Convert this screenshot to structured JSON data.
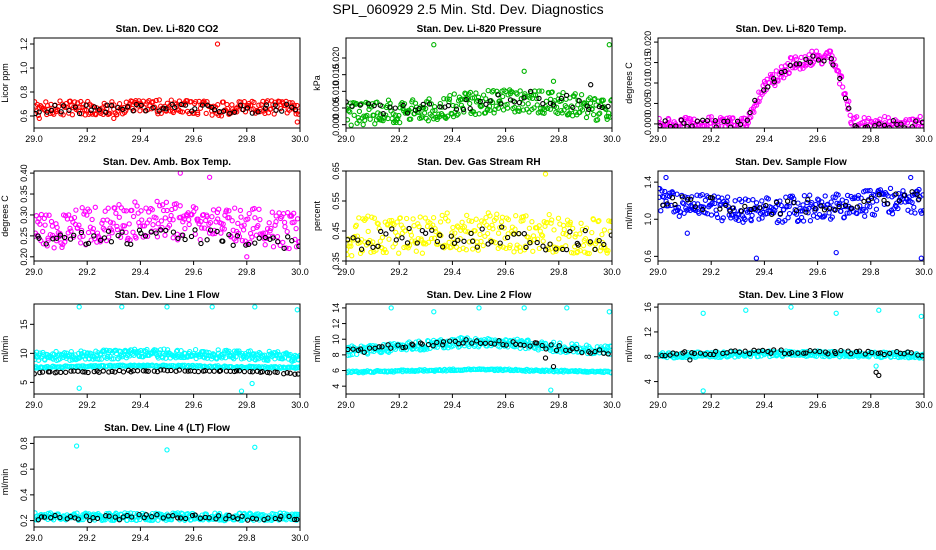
{
  "page": {
    "title": "SPL_060929  2.5 Min. Std. Dev. Diagnostics"
  },
  "chart_data": [
    {
      "type": "scatter",
      "title": "Stan. Dev. Li-820 CO2",
      "xlabel": "",
      "ylabel": "Licor ppm",
      "xlim": [
        29.0,
        30.0
      ],
      "xticks": [
        "29.0",
        "29.2",
        "29.4",
        "29.6",
        "29.8",
        "30.0"
      ],
      "ylim": [
        0.5,
        1.25
      ],
      "yticks": [
        0.6,
        0.8,
        1.0,
        1.2
      ],
      "ytick_labels": [
        "0.6",
        "0.8",
        "1.0",
        "1.2"
      ],
      "series": [
        {
          "color": "#ff0000",
          "band": {
            "center": [
              0.66,
              0.67,
              0.66,
              0.68,
              0.67,
              0.66,
              0.67,
              0.66
            ],
            "spread": 0.06
          },
          "n": 260,
          "outliers": [
            [
              29.02,
              0.58
            ],
            [
              29.69,
              1.2
            ],
            [
              29.99,
              0.55
            ],
            [
              29.3,
              0.58
            ]
          ]
        },
        {
          "color": "#000000",
          "band": {
            "center": [
              0.65,
              0.66,
              0.66,
              0.67,
              0.66,
              0.66,
              0.66,
              0.66
            ],
            "spread": 0.04
          },
          "n": 55,
          "outliers": []
        }
      ]
    },
    {
      "type": "scatter",
      "title": "Stan. Dev. Li-820 Pressure",
      "xlabel": "",
      "ylabel": "kPa",
      "xlim": [
        29.0,
        30.0
      ],
      "xticks": [
        "29.0",
        "29.2",
        "29.4",
        "29.6",
        "29.8",
        "30.0"
      ],
      "ylim": [
        -0.001,
        0.026
      ],
      "yticks": [
        0.0,
        0.005,
        0.01,
        0.015,
        0.02
      ],
      "ytick_labels": [
        "0.000",
        "0.005",
        "0.010",
        "0.015",
        "0.020"
      ],
      "series": [
        {
          "color": "#00b400",
          "band": {
            "center": [
              0.003,
              0.004,
              0.004,
              0.006,
              0.007,
              0.007,
              0.006,
              0.004
            ],
            "spread": 0.0035
          },
          "n": 320,
          "outliers": [
            [
              29.33,
              0.024
            ],
            [
              29.67,
              0.016
            ],
            [
              29.99,
              0.024
            ],
            [
              29.78,
              0.013
            ]
          ]
        },
        {
          "color": "#000000",
          "band": {
            "center": [
              0.005,
              0.005,
              0.005,
              0.006,
              0.008,
              0.008,
              0.007,
              0.005
            ],
            "spread": 0.002
          },
          "n": 45,
          "outliers": [
            [
              29.92,
              0.012
            ]
          ]
        }
      ]
    },
    {
      "type": "scatter",
      "title": "Stan. Dev. Li-820 Temp.",
      "xlabel": "",
      "ylabel": "degrees C",
      "xlim": [
        29.0,
        30.0
      ],
      "xticks": [
        "29.0",
        "29.2",
        "29.4",
        "29.6",
        "29.8",
        "30.0"
      ],
      "ylim": [
        -0.001,
        0.021
      ],
      "yticks": [
        0.0,
        0.005,
        0.01,
        0.015,
        0.02
      ],
      "ytick_labels": [
        "0.000",
        "0.005",
        "0.010",
        "0.015",
        "0.020"
      ],
      "series": [
        {
          "color": "#ff00ff",
          "band": {
            "x": [
              29.0,
              29.33,
              29.34,
              29.4,
              29.5,
              29.6,
              29.66,
              29.72,
              29.73,
              30.0
            ],
            "center": [
              0.0,
              0.0,
              0.002,
              0.009,
              0.0145,
              0.0165,
              0.016,
              0.004,
              0.0,
              0.0
            ],
            "spread": 0.0018
          },
          "n": 300,
          "outliers": []
        },
        {
          "color": "#000000",
          "band": {
            "x": [
              29.0,
              29.33,
              29.34,
              29.4,
              29.5,
              29.6,
              29.66,
              29.72,
              29.73,
              30.0
            ],
            "center": [
              0.0,
              0.0,
              0.002,
              0.009,
              0.014,
              0.016,
              0.015,
              0.004,
              0.0,
              0.0
            ],
            "spread": 0.001
          },
          "n": 55,
          "outliers": []
        }
      ]
    },
    {
      "type": "scatter",
      "title": "Stan. Dev. Amb. Box Temp.",
      "xlabel": "",
      "ylabel": "degrees C",
      "xlim": [
        29.0,
        30.0
      ],
      "xticks": [
        "29.0",
        "29.2",
        "29.4",
        "29.6",
        "29.8",
        "30.0"
      ],
      "ylim": [
        0.19,
        0.405
      ],
      "yticks": [
        0.2,
        0.25,
        0.3,
        0.35,
        0.4
      ],
      "ytick_labels": [
        "0.20",
        "0.25",
        "0.30",
        "0.35",
        "0.40"
      ],
      "series": [
        {
          "color": "#ff00ff",
          "band": {
            "center": [
              0.26,
              0.27,
              0.28,
              0.29,
              0.28,
              0.28,
              0.27,
              0.26
            ],
            "spread": 0.045
          },
          "n": 300,
          "outliers": [
            [
              29.55,
              0.4
            ],
            [
              29.66,
              0.39
            ],
            [
              29.8,
              0.2
            ]
          ]
        },
        {
          "color": "#000000",
          "band": {
            "center": [
              0.235,
              0.24,
              0.245,
              0.25,
              0.25,
              0.245,
              0.24,
              0.235
            ],
            "spread": 0.018
          },
          "n": 55,
          "outliers": []
        }
      ]
    },
    {
      "type": "scatter",
      "title": "Stan. Dev. Gas Stream RH",
      "xlabel": "",
      "ylabel": "percent",
      "xlim": [
        29.0,
        30.0
      ],
      "xticks": [
        "29.0",
        "29.2",
        "29.4",
        "29.6",
        "29.8",
        "30.0"
      ],
      "ylim": [
        0.35,
        0.65
      ],
      "yticks": [
        0.35,
        0.45,
        0.55,
        0.65
      ],
      "ytick_labels": [
        "0.35",
        "0.45",
        "0.55",
        "0.65"
      ],
      "series": [
        {
          "color": "#ffff00",
          "band": {
            "center": [
              0.43,
              0.44,
              0.44,
              0.45,
              0.45,
              0.44,
              0.44,
              0.43
            ],
            "spread": 0.065
          },
          "n": 300,
          "outliers": [
            [
              29.75,
              0.64
            ]
          ]
        },
        {
          "color": "#000000",
          "band": {
            "center": [
              0.42,
              0.42,
              0.43,
              0.43,
              0.43,
              0.42,
              0.42,
              0.42
            ],
            "spread": 0.035
          },
          "n": 55,
          "outliers": []
        }
      ]
    },
    {
      "type": "scatter",
      "title": "Stan. Dev. Sample Flow",
      "xlabel": "",
      "ylabel": "ml/min",
      "xlim": [
        29.0,
        30.0
      ],
      "xticks": [
        "29.0",
        "29.2",
        "29.4",
        "29.6",
        "29.8",
        "30.0"
      ],
      "ylim": [
        0.55,
        1.52
      ],
      "yticks": [
        0.6,
        1.0,
        1.4
      ],
      "ytick_labels": [
        "0.6",
        "1.0",
        "1.4"
      ],
      "series": [
        {
          "color": "#0000ff",
          "band": {
            "center": [
              1.2,
              1.15,
              1.1,
              1.1,
              1.12,
              1.15,
              1.2,
              1.2
            ],
            "spread": 0.14
          },
          "n": 320,
          "outliers": [
            [
              29.03,
              1.45
            ],
            [
              29.11,
              0.85
            ],
            [
              29.37,
              0.58
            ],
            [
              29.67,
              0.64
            ],
            [
              29.95,
              1.45
            ],
            [
              29.99,
              0.58
            ]
          ]
        },
        {
          "color": "#000000",
          "band": {
            "center": [
              1.22,
              1.18,
              1.14,
              1.12,
              1.15,
              1.18,
              1.22,
              1.24
            ],
            "spread": 0.07
          },
          "n": 50,
          "outliers": []
        }
      ]
    },
    {
      "type": "scatter",
      "title": "Stan. Dev. Line 1 Flow",
      "xlabel": "",
      "ylabel": "ml/min",
      "xlim": [
        29.0,
        30.0
      ],
      "xticks": [
        "29.0",
        "29.2",
        "29.4",
        "29.6",
        "29.8",
        "30.0"
      ],
      "ylim": [
        3,
        18.5
      ],
      "yticks": [
        5,
        10,
        15
      ],
      "ytick_labels": [
        "5",
        "10",
        "15"
      ],
      "series": [
        {
          "color": "#00ffff",
          "band": {
            "center": [
              9.4,
              9.6,
              9.8,
              10,
              9.9,
              9.8,
              9.6,
              9.4
            ],
            "spread": 0.8
          },
          "n": 320,
          "outliers": [
            [
              29.17,
              18
            ],
            [
              29.33,
              18
            ],
            [
              29.5,
              18
            ],
            [
              29.67,
              18
            ],
            [
              29.83,
              18
            ],
            [
              29.99,
              17.5
            ],
            [
              29.17,
              4
            ],
            [
              29.78,
              3.5
            ],
            [
              29.82,
              4.8
            ]
          ]
        },
        {
          "color": "#00ffff",
          "band": {
            "center": [
              7.6,
              7.7,
              7.8,
              7.9,
              7.8,
              7.7,
              7.6,
              7.5
            ],
            "spread": 0.15
          },
          "n": 200,
          "outliers": []
        },
        {
          "color": "#000000",
          "band": {
            "center": [
              6.6,
              6.8,
              6.9,
              7.0,
              7.0,
              6.9,
              6.8,
              6.4
            ],
            "spread": 0.15
          },
          "n": 70,
          "outliers": []
        }
      ]
    },
    {
      "type": "scatter",
      "title": "Stan. Dev. Line 2 Flow",
      "xlabel": "",
      "ylabel": "ml/min",
      "xlim": [
        29.0,
        30.0
      ],
      "xticks": [
        "29.0",
        "29.2",
        "29.4",
        "29.6",
        "29.8",
        "30.0"
      ],
      "ylim": [
        3,
        14.5
      ],
      "yticks": [
        4,
        6,
        8,
        10,
        12,
        14
      ],
      "ytick_labels": [
        "4",
        "6",
        "8",
        "10",
        "12",
        "14"
      ],
      "series": [
        {
          "color": "#00ffff",
          "band": {
            "center": [
              8.5,
              8.8,
              9.2,
              9.6,
              9.6,
              9.2,
              8.8,
              8.6
            ],
            "spread": 0.6
          },
          "n": 300,
          "outliers": [
            [
              29.17,
              14
            ],
            [
              29.33,
              13.5
            ],
            [
              29.5,
              14
            ],
            [
              29.67,
              14
            ],
            [
              29.83,
              14
            ],
            [
              29.99,
              13.5
            ],
            [
              29.77,
              3.5
            ]
          ]
        },
        {
          "color": "#00ffff",
          "band": {
            "center": [
              5.8,
              5.9,
              6.0,
              6.1,
              6.1,
              6.0,
              5.9,
              5.8
            ],
            "spread": 0.12
          },
          "n": 200,
          "outliers": []
        },
        {
          "color": "#000000",
          "band": {
            "center": [
              8.4,
              8.9,
              9.3,
              9.6,
              9.6,
              9.2,
              8.6,
              8.4
            ],
            "spread": 0.35
          },
          "n": 60,
          "outliers": [
            [
              29.78,
              6.5
            ],
            [
              29.75,
              7.6
            ]
          ]
        }
      ]
    },
    {
      "type": "scatter",
      "title": "Stan. Dev. Line 3 Flow",
      "xlabel": "",
      "ylabel": "ml/min",
      "xlim": [
        29.0,
        30.0
      ],
      "xticks": [
        "29.0",
        "29.2",
        "29.4",
        "29.6",
        "29.8",
        "30.0"
      ],
      "ylim": [
        2,
        16.5
      ],
      "yticks": [
        4,
        8,
        12,
        16
      ],
      "ytick_labels": [
        "4",
        "8",
        "12",
        "16"
      ],
      "series": [
        {
          "color": "#00ffff",
          "band": {
            "center": [
              8.2,
              8.3,
              8.4,
              8.5,
              8.5,
              8.4,
              8.3,
              8.2
            ],
            "spread": 0.45
          },
          "n": 320,
          "outliers": [
            [
              29.17,
              15
            ],
            [
              29.33,
              15.5
            ],
            [
              29.5,
              16
            ],
            [
              29.67,
              15
            ],
            [
              29.83,
              15.5
            ],
            [
              29.99,
              14.5
            ],
            [
              29.17,
              2.5
            ],
            [
              29.82,
              6.5
            ]
          ]
        },
        {
          "color": "#000000",
          "band": {
            "center": [
              8.4,
              8.6,
              8.7,
              8.8,
              8.8,
              8.7,
              8.6,
              8.4
            ],
            "spread": 0.3
          },
          "n": 60,
          "outliers": [
            [
              29.12,
              7.5
            ],
            [
              29.83,
              5
            ],
            [
              29.82,
              5.5
            ]
          ]
        }
      ]
    },
    {
      "type": "scatter",
      "title": "Stan. Dev. Line 4 (LT) Flow",
      "xlabel": "",
      "ylabel": "ml/min",
      "xlim": [
        29.0,
        30.0
      ],
      "xticks": [
        "29.0",
        "29.2",
        "29.4",
        "29.6",
        "29.8",
        "30.0"
      ],
      "ylim": [
        0.15,
        0.85
      ],
      "yticks": [
        0.2,
        0.4,
        0.6,
        0.8
      ],
      "ytick_labels": [
        "0.2",
        "0.4",
        "0.6",
        "0.8"
      ],
      "series": [
        {
          "color": "#00ffff",
          "band": {
            "center": [
              0.23,
              0.23,
              0.23,
              0.23,
              0.23,
              0.23,
              0.23,
              0.23
            ],
            "spread": 0.03
          },
          "n": 320,
          "outliers": [
            [
              29.16,
              0.78
            ],
            [
              29.5,
              0.75
            ],
            [
              29.83,
              0.77
            ]
          ]
        },
        {
          "color": "#000000",
          "band": {
            "center": [
              0.22,
              0.22,
              0.22,
              0.23,
              0.23,
              0.22,
              0.22,
              0.22
            ],
            "spread": 0.02
          },
          "n": 55,
          "outliers": []
        }
      ]
    }
  ]
}
